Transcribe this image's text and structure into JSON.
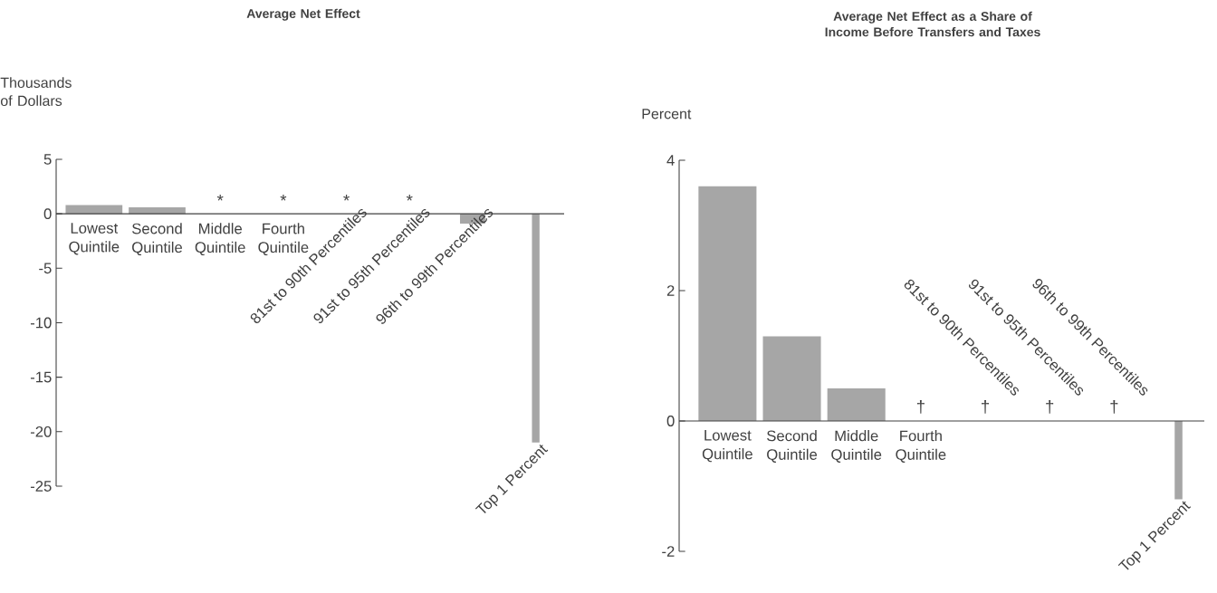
{
  "chart_data": [
    {
      "type": "bar",
      "title": "Average Net Effect",
      "ylabel": "Thousands of Dollars",
      "color": "#a6a6a6",
      "categories": [
        "Lowest Quintile",
        "Second Quintile",
        "Middle Quintile",
        "Fourth Quintile",
        "81st to 90th Percentiles",
        "91st to 95th Percentiles",
        "96th to 99th Percentiles",
        "Top 1 Percent"
      ],
      "values": [
        0.8,
        0.6,
        null,
        null,
        null,
        null,
        -0.9,
        -21
      ],
      "ylim": [
        -25,
        5
      ],
      "yticks": [
        -25,
        -20,
        -15,
        -10,
        -5,
        0,
        5
      ],
      "annotations": [
        "*",
        "*",
        "*",
        "*"
      ]
    },
    {
      "type": "bar",
      "title": "Average Net Effect as a Share of Income Before Transfers and Taxes",
      "ylabel": "Percent",
      "color": "#a6a6a6",
      "categories": [
        "Lowest Quintile",
        "Second Quintile",
        "Middle Quintile",
        "Fourth Quintile",
        "81st to 90th Percentiles",
        "91st to 95th Percentiles",
        "96th to 99th Percentiles",
        "Top 1 Percent"
      ],
      "values": [
        3.6,
        1.3,
        0.5,
        null,
        null,
        null,
        null,
        -1.2
      ],
      "ylim": [
        -2,
        4
      ],
      "yticks": [
        -2,
        0,
        2,
        4
      ],
      "annotations": [
        "†",
        "†",
        "†",
        "†"
      ]
    }
  ]
}
